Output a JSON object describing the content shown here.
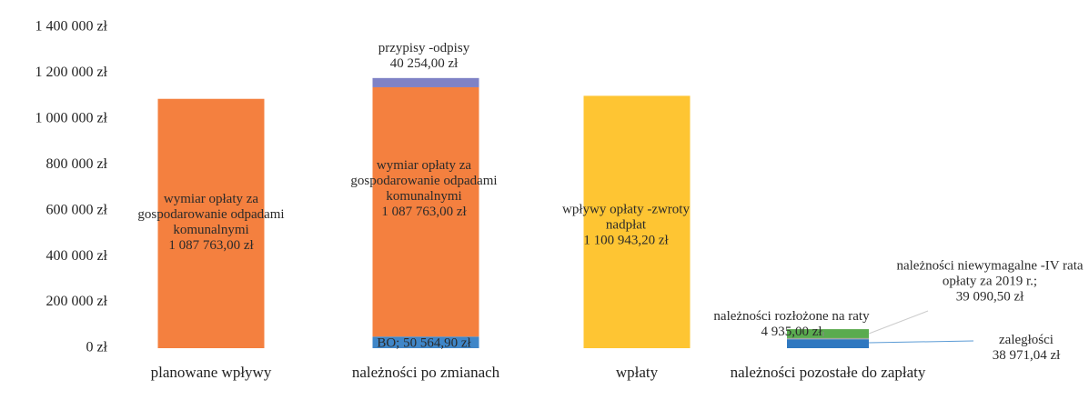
{
  "chart_data": {
    "type": "stacked_bar",
    "categories": [
      "planowane wpływy",
      "należności po zmianach",
      "wpłaty",
      "należności pozostałe do zapłaty"
    ],
    "ylim": [
      0,
      1400000
    ],
    "yticks": [
      {
        "value": 0,
        "label": "0 zł"
      },
      {
        "value": 200000,
        "label": "200 000 zł"
      },
      {
        "value": 400000,
        "label": "400 000 zł"
      },
      {
        "value": 600000,
        "label": "600 000 zł"
      },
      {
        "value": 800000,
        "label": "800 000 zł"
      },
      {
        "value": 1000000,
        "label": "1 000 000 zł"
      },
      {
        "value": 1200000,
        "label": "1 200 000 zł"
      },
      {
        "value": 1400000,
        "label": "1 400 000 zł"
      }
    ],
    "series": [
      {
        "name": "BO;",
        "color": "#3f86c8",
        "values": [
          null,
          50564.9,
          null,
          null
        ],
        "value_labels": [
          null,
          "50 564,90 zł",
          null,
          null
        ]
      },
      {
        "name": "wymiar opłaty za gospodarowanie odpadami komunalnymi",
        "color": "#f4803f",
        "values": [
          1087763,
          1087763,
          null,
          null
        ],
        "value_labels": [
          "1 087 763,00 zł",
          "1 087 763,00 zł",
          null,
          null
        ]
      },
      {
        "name": "przypisy -odpisy",
        "color": "#7f82c6",
        "values": [
          null,
          40254,
          null,
          null
        ],
        "value_labels": [
          null,
          "40 254,00 zł",
          null,
          null
        ]
      },
      {
        "name": "wpływy opłaty -zwroty nadpłat",
        "color": "#fec533",
        "values": [
          null,
          null,
          1100943.2,
          null
        ],
        "value_labels": [
          null,
          null,
          "1 100 943,20 zł",
          null
        ]
      },
      {
        "name": "zaległości",
        "color": "#2f78c0",
        "values": [
          null,
          null,
          null,
          38971.04
        ],
        "value_labels": [
          null,
          null,
          null,
          "38 971,04 zł"
        ]
      },
      {
        "name": "należności rozłożone na raty",
        "color": "#a5a5a5",
        "values": [
          null,
          null,
          null,
          4935
        ],
        "value_labels": [
          null,
          null,
          null,
          "4 935,00 zł"
        ]
      },
      {
        "name": "należności niewymagalne -IV rata opłaty za 2019 r.;",
        "color": "#5aab4f",
        "values": [
          null,
          null,
          null,
          39090.5
        ],
        "value_labels": [
          null,
          null,
          null,
          "39 090,50 zł"
        ]
      }
    ]
  }
}
